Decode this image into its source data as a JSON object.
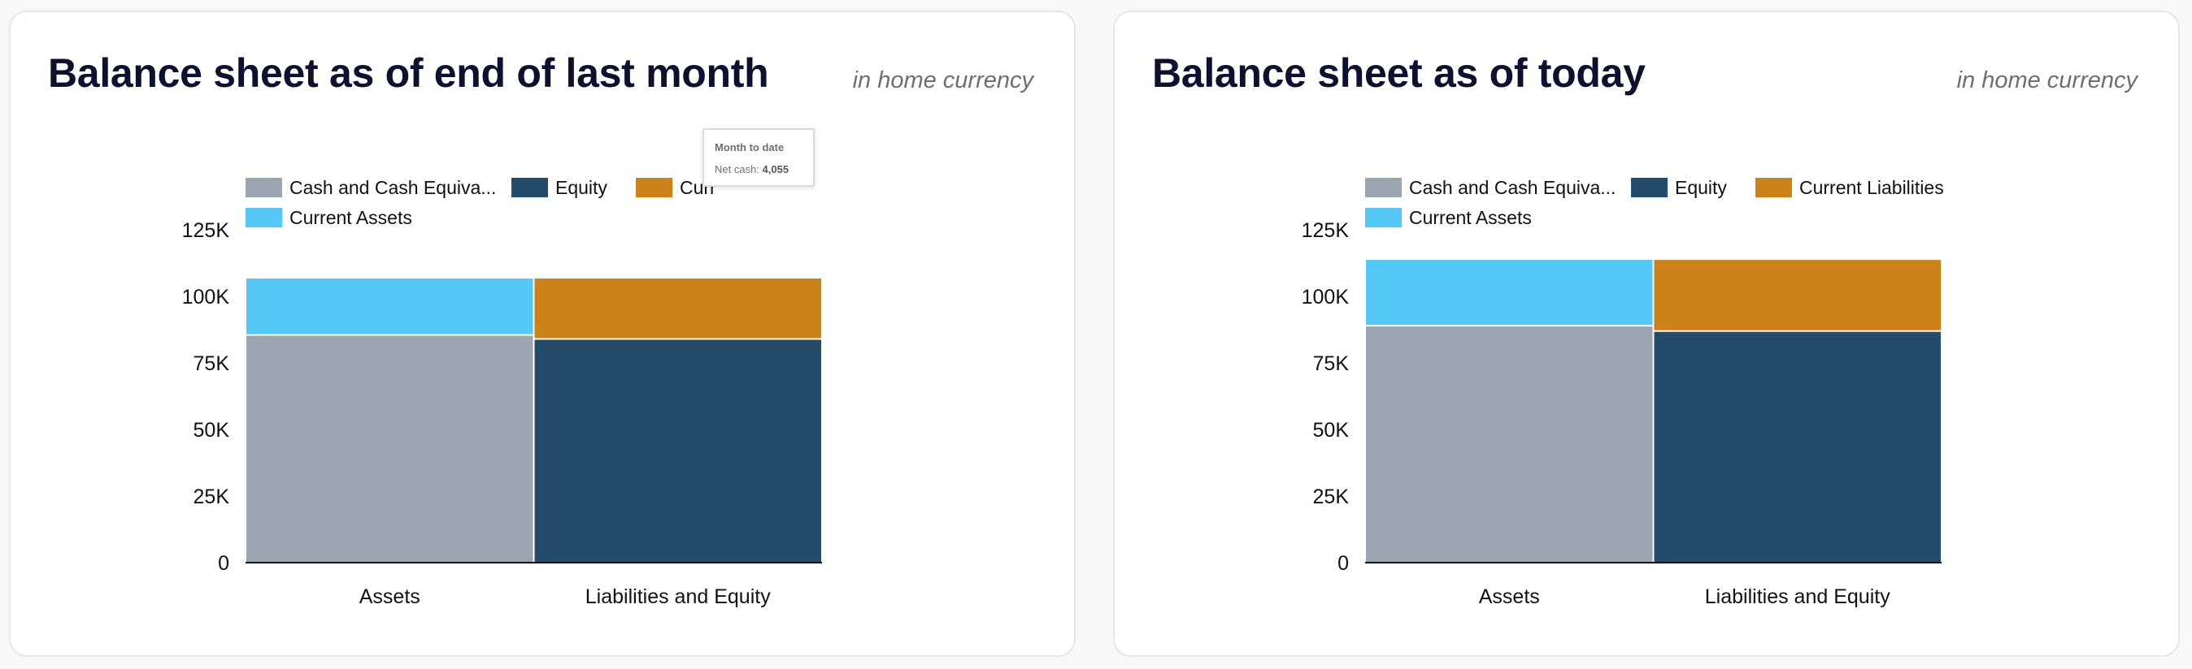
{
  "colors": {
    "cash": "#9ca6b0",
    "equity": "#244b69",
    "current_liabilities": "#cc8219",
    "current_assets": "#54c8f6",
    "axis_text": "#111111",
    "baseline": "#0c1130"
  },
  "tooltip": {
    "title": "Month to date",
    "label": "Net cash: ",
    "value": "4,055"
  },
  "cards": [
    {
      "title": "Balance sheet as of end of last month",
      "subtitle": "in home currency"
    },
    {
      "title": "Balance sheet as of today",
      "subtitle": "in home currency"
    }
  ],
  "chart_data": [
    {
      "type": "bar",
      "stacked": true,
      "categories": [
        "Assets",
        "Liabilities and Equity"
      ],
      "y_ticks": [
        "0",
        "25K",
        "50K",
        "75K",
        "100K",
        "125K"
      ],
      "ylim": [
        0,
        125000
      ],
      "grid": false,
      "legend": "top",
      "legend_labels": [
        "Cash and Cash Equiva...",
        "Equity",
        "Curr",
        "Current Assets"
      ],
      "series": [
        {
          "name": "Cash and Cash Equivalents",
          "color_key": "cash",
          "values": [
            85500,
            0
          ]
        },
        {
          "name": "Equity",
          "color_key": "equity",
          "values": [
            0,
            84000
          ]
        },
        {
          "name": "Current Liabilities",
          "color_key": "current_liabilities",
          "values": [
            0,
            23000
          ]
        },
        {
          "name": "Current Assets",
          "color_key": "current_assets",
          "values": [
            21500,
            0
          ]
        }
      ]
    },
    {
      "type": "bar",
      "stacked": true,
      "categories": [
        "Assets",
        "Liabilities and Equity"
      ],
      "y_ticks": [
        "0",
        "25K",
        "50K",
        "75K",
        "100K",
        "125K"
      ],
      "ylim": [
        0,
        125000
      ],
      "grid": false,
      "legend": "top",
      "legend_labels": [
        "Cash and Cash Equiva...",
        "Equity",
        "Current Liabilities",
        "Current Assets"
      ],
      "series": [
        {
          "name": "Cash and Cash Equivalents",
          "color_key": "cash",
          "values": [
            89000,
            0
          ]
        },
        {
          "name": "Equity",
          "color_key": "equity",
          "values": [
            0,
            87000
          ]
        },
        {
          "name": "Current Liabilities",
          "color_key": "current_liabilities",
          "values": [
            0,
            27000
          ]
        },
        {
          "name": "Current Assets",
          "color_key": "current_assets",
          "values": [
            25000,
            0
          ]
        }
      ]
    }
  ]
}
